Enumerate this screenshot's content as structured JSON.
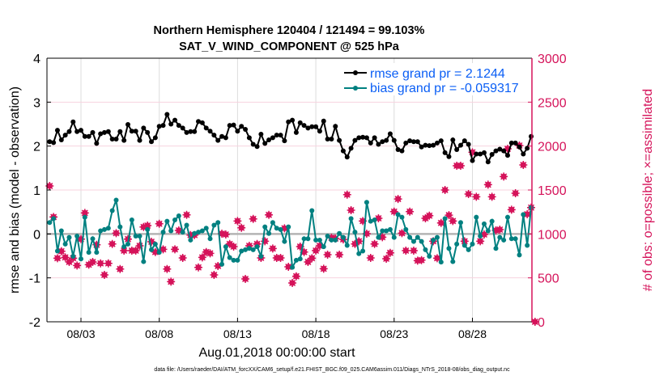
{
  "chart_data": {
    "type": "line",
    "title_line1": "Northern Hemisphere 120404 / 121494 = 99.103%",
    "title_line2": "SAT_V_WIND_COMPONENT @ 525 hPa",
    "ylabel": "rmse and bias (model - observation)",
    "ylabel_right": "# of obs: o=possible; ×=assimilated",
    "xlabel": "Aug.01,2018 00:00:00 start",
    "footnote": "data file: /Users/raeder/DAI/ATM_forcXX/CAM6_setup/f.e21.FHIST_BGC.f09_025.CAM6assim.011/Diags_NTrS_2018-08/obs_diag_output.nc",
    "ylim": [
      -2,
      4
    ],
    "ylim_right": [
      0,
      3000
    ],
    "yticks": [
      "4",
      "3",
      "2",
      "1",
      "0",
      "-1",
      "-2"
    ],
    "yticks_right": [
      "3000",
      "2500",
      "2000",
      "1500",
      "1000",
      "500",
      "0"
    ],
    "xticks": [
      "08/03",
      "08/08",
      "08/13",
      "08/18",
      "08/23",
      "08/28"
    ],
    "grid": true,
    "legend_position": "top-right",
    "colors": {
      "rmse": "#000000",
      "bias": "#008080",
      "obs": "#d5135a",
      "legend_text": "#0a5ef5",
      "zero_line": "#b4b4b4"
    },
    "series": [
      {
        "name": "rmse grand pr = 2.1244",
        "axis": "left",
        "values": [
          2.1,
          2.08,
          2.36,
          2.14,
          2.25,
          2.33,
          2.55,
          2.33,
          2.36,
          2.22,
          2.22,
          2.31,
          2.06,
          2.28,
          2.31,
          2.33,
          2.16,
          2.16,
          2.33,
          2.13,
          2.49,
          2.34,
          2.34,
          2.13,
          2.41,
          2.31,
          2.1,
          2.19,
          2.45,
          2.47,
          2.72,
          2.5,
          2.59,
          2.47,
          2.41,
          2.31,
          2.33,
          2.33,
          2.56,
          2.53,
          2.41,
          2.34,
          2.25,
          2.13,
          2.22,
          2.19,
          2.47,
          2.48,
          2.34,
          2.45,
          2.38,
          2.19,
          2.04,
          1.99,
          2.27,
          2.06,
          2.14,
          2.19,
          2.25,
          2.25,
          2.12,
          2.55,
          2.59,
          2.31,
          2.53,
          2.47,
          2.41,
          2.44,
          2.44,
          2.34,
          2.57,
          2.16,
          2.16,
          2.45,
          2.13,
          1.89,
          1.75,
          1.95,
          2.13,
          2.19,
          2.2,
          2.19,
          2.07,
          2.19,
          2.04,
          2.1,
          2.13,
          2.28,
          2.13,
          1.92,
          1.89,
          2.07,
          2.12,
          2.1,
          2.1,
          1.98,
          2.02,
          2.01,
          2.02,
          2.07,
          2.12,
          1.85,
          1.76,
          2.14,
          1.92,
          2.02,
          2.12,
          2.04,
          1.67,
          1.82,
          1.82,
          1.85,
          1.64,
          1.81,
          1.89,
          1.93,
          1.89,
          1.79,
          2.07,
          2.07,
          1.98,
          1.82,
          1.95,
          2.22
        ]
      },
      {
        "name": "bias grand pr = -0.059317",
        "axis": "left",
        "values": [
          0.26,
          0.35,
          -0.39,
          0.07,
          -0.23,
          -0.08,
          -0.51,
          -0.05,
          -0.57,
          0.38,
          -0.42,
          -0.11,
          -0.42,
          0.07,
          0.1,
          0.13,
          0.53,
          0.77,
          0.16,
          -0.29,
          -0.23,
          0.32,
          -0.05,
          -0.05,
          -0.63,
          0.1,
          -0.36,
          -0.23,
          -0.42,
          0.04,
          0.29,
          0.07,
          0.32,
          0.41,
          0.04,
          0.2,
          -0.14,
          0.01,
          0.04,
          0.07,
          0.13,
          -0.11,
          0.2,
          0.26,
          -0.69,
          -0.29,
          -0.54,
          -0.6,
          -0.6,
          -0.39,
          -0.36,
          -0.33,
          -0.36,
          -0.29,
          -0.51,
          0.16,
          0.01,
          0.26,
          0.13,
          0.1,
          -0.17,
          0.16,
          -0.76,
          -0.6,
          -0.57,
          -0.11,
          -0.11,
          0.53,
          -0.14,
          -0.14,
          -0.29,
          -0.05,
          -0.14,
          -0.14,
          0.01,
          -0.08,
          -0.26,
          0.35,
          0.04,
          -0.45,
          -0.39,
          0.72,
          0.29,
          0.32,
          -0.08,
          0.07,
          0.07,
          0.1,
          -0.08,
          0.44,
          0.38,
          0.1,
          -0.08,
          -0.17,
          -0.08,
          -0.17,
          -0.36,
          -0.51,
          -0.14,
          -0.08,
          -0.64,
          0.35,
          -0.33,
          -0.63,
          -0.23,
          0.26,
          -0.26,
          -0.36,
          -0.23,
          0.38,
          -0.05,
          0.23,
          0.07,
          0.29,
          -0.33,
          -0.08,
          -0.14,
          0.38,
          -0.11,
          -0.11,
          -0.48,
          0.44,
          -0.26,
          0.6
        ]
      },
      {
        "axis": "right",
        "values": [
          1546,
          1193,
          724,
          803,
          733,
          681,
          724,
          641,
          941,
          1239,
          650,
          681,
          877,
          665,
          534,
          665,
          886,
          1009,
          601,
          810,
          941,
          810,
          810,
          865,
          1079,
          1095,
          911,
          794,
          1116,
          825,
          601,
          457,
          825,
          1040,
          727,
          1217,
          987,
          987,
          619,
          733,
          794,
          779,
          534,
          635,
          1003,
          994,
          886,
          856,
          1147,
          1070,
          488,
          865,
          1171,
          886,
          727,
          917,
          1217,
          834,
          727,
          727,
          1064,
          626,
          442,
          518,
          856,
          794,
          681,
          724,
          810,
          865,
          604,
          764,
          957,
          948,
          764,
          938,
          1447,
          1270,
          886,
          917,
          1147,
          1003,
          727,
          886,
          1178,
          963,
          718,
          785,
          1254,
          1398,
          1009,
          810,
          1254,
          810,
          696,
          702,
          1178,
          1208,
          917,
          724,
          1125,
          1500,
          1214,
          1147,
          1776,
          1776,
          917,
          1454,
          1929,
          1423,
          917,
          994,
          1561,
          1423,
          1040,
          1049,
          1653,
          1969,
          1276,
          1463,
          2006,
          1785,
          1224,
          1300,
          0
        ]
      }
    ]
  }
}
